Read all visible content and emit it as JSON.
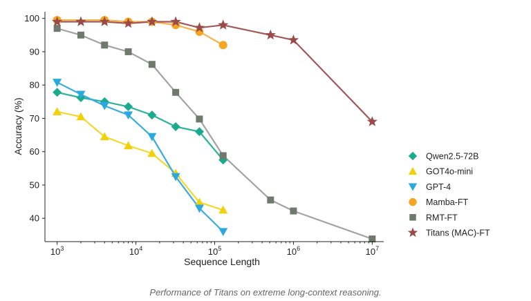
{
  "caption": "Performance of Titans on extreme long-context reasoning.",
  "chart_data": {
    "type": "line",
    "xlabel": "Sequence Length",
    "ylabel": "Accuracy (%)",
    "x_scale": "log",
    "xlim": [
      700,
      14000000
    ],
    "ylim": [
      33,
      102
    ],
    "x_ticks": [
      {
        "value": 1000,
        "base": "10",
        "exp": "3"
      },
      {
        "value": 10000,
        "base": "10",
        "exp": "4"
      },
      {
        "value": 100000,
        "base": "10",
        "exp": "5"
      },
      {
        "value": 1000000,
        "base": "10",
        "exp": "6"
      },
      {
        "value": 10000000,
        "base": "10",
        "exp": "7"
      }
    ],
    "y_ticks": [
      "40",
      "50",
      "60",
      "70",
      "80",
      "90",
      "100"
    ],
    "grid": false,
    "legend": "right",
    "series": [
      {
        "name": "Qwen2.5-72B",
        "color": "#1aab8f",
        "line_color": "#2bb49a",
        "marker": "diamond",
        "x": [
          1000,
          2000,
          4000,
          8000,
          16000,
          32000,
          64000,
          128000
        ],
        "y": [
          77.8,
          76.2,
          75.0,
          73.5,
          71.0,
          67.5,
          66.0,
          57.5
        ]
      },
      {
        "name": "GOT4o-mini",
        "color": "#f2d10c",
        "line_color": "#f4d82a",
        "marker": "triangle-up",
        "x": [
          1000,
          2000,
          4000,
          8000,
          16000,
          32000,
          64000,
          128000
        ],
        "y": [
          72.0,
          70.5,
          64.5,
          61.8,
          59.5,
          53.5,
          44.8,
          42.5
        ]
      },
      {
        "name": "GPT-4",
        "color": "#2aa9e0",
        "line_color": "#36ace2",
        "marker": "triangle-down",
        "x": [
          1000,
          2000,
          4000,
          8000,
          16000,
          32000,
          64000,
          128000
        ],
        "y": [
          80.8,
          77.2,
          73.8,
          71.0,
          64.5,
          52.5,
          43.0,
          36.0
        ]
      },
      {
        "name": "Mamba-FT",
        "color": "#f5a623",
        "line_color": "#f7b24a",
        "marker": "circle",
        "x": [
          1000,
          4000,
          8000,
          16000,
          32000,
          64000,
          128000
        ],
        "y": [
          99.5,
          99.5,
          99.0,
          99.0,
          98.0,
          96.0,
          92.0
        ]
      },
      {
        "name": "RMT-FT",
        "color": "#707a6c",
        "line_color": "#a3a3a3",
        "marker": "square",
        "x": [
          1000,
          2000,
          4000,
          8000,
          16000,
          32000,
          64000,
          128000,
          512000,
          1000000,
          10000000
        ],
        "y": [
          97.0,
          95.0,
          92.0,
          90.0,
          86.2,
          77.8,
          69.8,
          58.8,
          45.5,
          42.2,
          33.8
        ]
      },
      {
        "name": "Titans (MAC)-FT",
        "color": "#9b4a4a",
        "line_color": "#a35858",
        "marker": "star",
        "x": [
          1000,
          2000,
          4000,
          8000,
          16000,
          32000,
          64000,
          128000,
          512000,
          1000000,
          10000000
        ],
        "y": [
          99.0,
          99.0,
          99.0,
          98.5,
          99.0,
          99.0,
          97.2,
          98.0,
          95.0,
          93.5,
          69.0
        ]
      }
    ]
  }
}
